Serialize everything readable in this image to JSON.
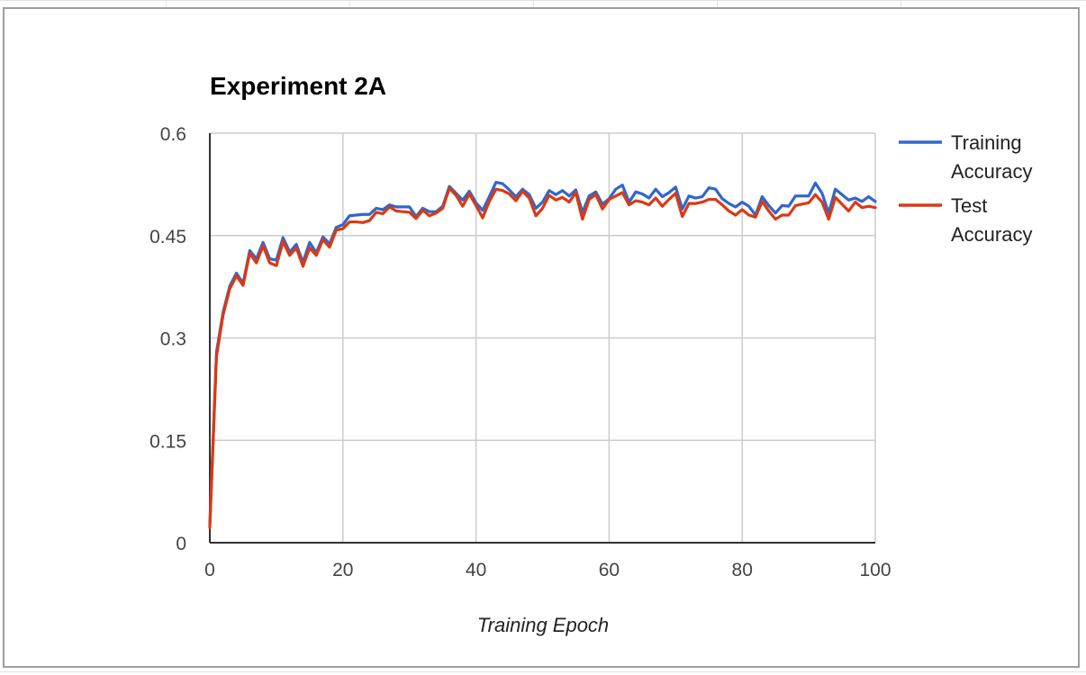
{
  "chart_data": {
    "type": "line",
    "title": "Experiment 2A",
    "xlabel": "Training Epoch",
    "ylabel": "",
    "xlim": [
      0,
      100
    ],
    "ylim": [
      0,
      0.6
    ],
    "xticks": [
      0,
      20,
      40,
      60,
      80,
      100
    ],
    "yticks": [
      0,
      0.15,
      0.3,
      0.45,
      0.6
    ],
    "xtick_labels": [
      "0",
      "20",
      "40",
      "60",
      "80",
      "100"
    ],
    "ytick_labels": [
      "0",
      "0.15",
      "0.3",
      "0.45",
      "0.6"
    ],
    "grid": true,
    "legend": "right",
    "series": [
      {
        "name": "Training Accuracy",
        "legend_lines": [
          "Training",
          "Accuracy"
        ],
        "color": "#3366cc",
        "values": [
          0.027,
          0.279,
          0.338,
          0.376,
          0.395,
          0.38,
          0.428,
          0.416,
          0.44,
          0.416,
          0.414,
          0.447,
          0.426,
          0.437,
          0.411,
          0.44,
          0.425,
          0.448,
          0.438,
          0.462,
          0.466,
          0.479,
          0.48,
          0.481,
          0.481,
          0.49,
          0.488,
          0.495,
          0.492,
          0.492,
          0.492,
          0.478,
          0.49,
          0.485,
          0.485,
          0.493,
          0.522,
          0.512,
          0.502,
          0.515,
          0.498,
          0.487,
          0.507,
          0.528,
          0.526,
          0.517,
          0.507,
          0.518,
          0.51,
          0.49,
          0.499,
          0.516,
          0.51,
          0.516,
          0.508,
          0.517,
          0.484,
          0.508,
          0.514,
          0.496,
          0.504,
          0.518,
          0.524,
          0.499,
          0.514,
          0.511,
          0.505,
          0.518,
          0.507,
          0.513,
          0.521,
          0.489,
          0.508,
          0.505,
          0.507,
          0.52,
          0.518,
          0.504,
          0.497,
          0.492,
          0.499,
          0.493,
          0.48,
          0.507,
          0.494,
          0.483,
          0.494,
          0.493,
          0.508,
          0.508,
          0.508,
          0.527,
          0.512,
          0.483,
          0.518,
          0.51,
          0.502,
          0.505,
          0.5,
          0.507,
          0.5
        ]
      },
      {
        "name": "Test Accuracy",
        "legend_lines": [
          "Test",
          "Accuracy"
        ],
        "color": "#dc3912",
        "values": [
          0.022,
          0.273,
          0.334,
          0.372,
          0.391,
          0.377,
          0.424,
          0.41,
          0.435,
          0.41,
          0.406,
          0.441,
          0.421,
          0.432,
          0.405,
          0.432,
          0.421,
          0.444,
          0.433,
          0.458,
          0.46,
          0.47,
          0.47,
          0.469,
          0.472,
          0.484,
          0.482,
          0.492,
          0.486,
          0.485,
          0.484,
          0.475,
          0.487,
          0.479,
          0.483,
          0.49,
          0.519,
          0.509,
          0.493,
          0.511,
          0.494,
          0.476,
          0.5,
          0.518,
          0.516,
          0.511,
          0.501,
          0.515,
          0.505,
          0.479,
          0.49,
          0.509,
          0.502,
          0.506,
          0.499,
          0.513,
          0.474,
          0.503,
          0.51,
          0.489,
          0.503,
          0.508,
          0.513,
          0.495,
          0.501,
          0.499,
          0.495,
          0.505,
          0.493,
          0.503,
          0.512,
          0.478,
          0.497,
          0.497,
          0.499,
          0.503,
          0.503,
          0.495,
          0.486,
          0.48,
          0.488,
          0.48,
          0.477,
          0.5,
          0.486,
          0.474,
          0.48,
          0.48,
          0.494,
          0.496,
          0.498,
          0.51,
          0.499,
          0.474,
          0.506,
          0.496,
          0.486,
          0.499,
          0.491,
          0.493,
          0.491
        ]
      }
    ]
  }
}
